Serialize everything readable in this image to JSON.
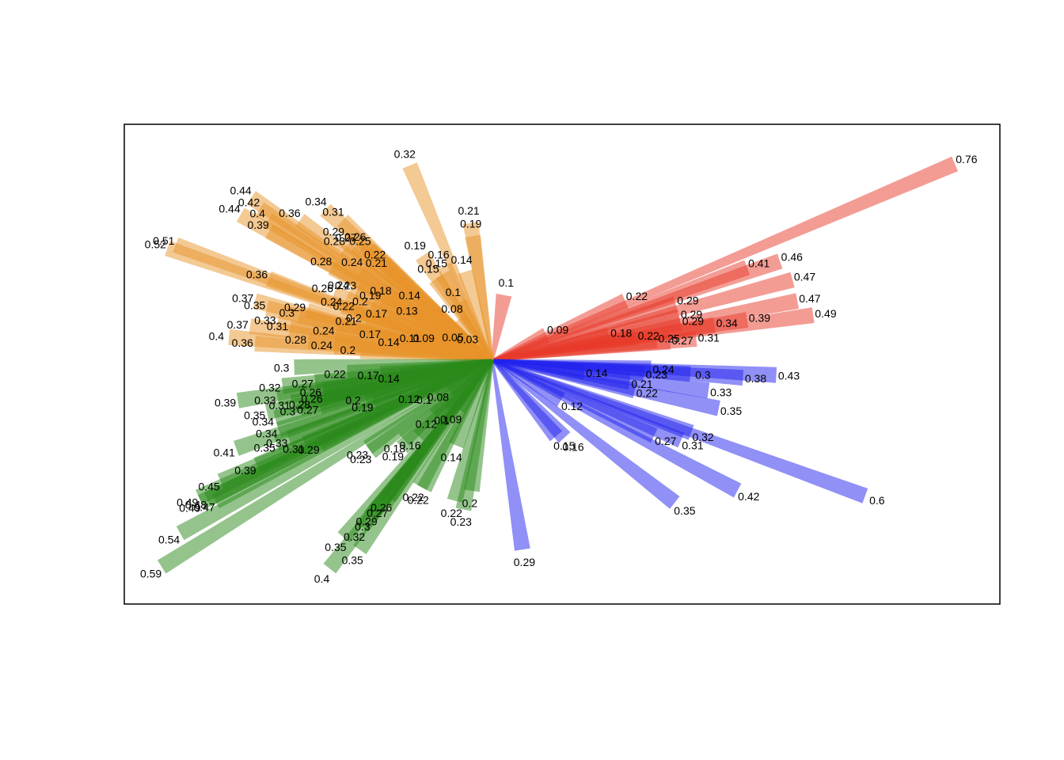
{
  "chart_data": {
    "type": "radial-bar",
    "title": "",
    "xlabel": "",
    "ylabel": "",
    "legend": "none",
    "grid": false,
    "units": "length in data units, angle in degrees (0 = east, counter-clockwise)",
    "series": [
      {
        "name": "red",
        "color": "#E8392A",
        "bars": [
          {
            "angle": 23,
            "value": 0.76
          },
          {
            "angle": 24,
            "value": 0.22
          },
          {
            "angle": 17,
            "value": 0.29
          },
          {
            "angle": 20,
            "value": 0.41
          },
          {
            "angle": 19,
            "value": 0.46
          },
          {
            "angle": 15,
            "value": 0.47
          },
          {
            "angle": 11,
            "value": 0.47
          },
          {
            "angle": 8,
            "value": 0.49
          },
          {
            "angle": 9,
            "value": 0.39
          },
          {
            "angle": 9,
            "value": 0.34
          },
          {
            "angle": 11,
            "value": 0.29
          },
          {
            "angle": 13,
            "value": 0.29
          },
          {
            "angle": 6,
            "value": 0.31
          },
          {
            "angle": 6,
            "value": 0.27
          },
          {
            "angle": 7,
            "value": 0.25
          },
          {
            "angle": 9,
            "value": 0.22
          },
          {
            "angle": 12,
            "value": 0.18
          },
          {
            "angle": 80,
            "value": 0.1
          },
          {
            "angle": 25,
            "value": 0.09
          }
        ]
      },
      {
        "name": "blue",
        "color": "#2222EE",
        "bars": [
          {
            "angle": -20,
            "value": 0.6
          },
          {
            "angle": -28,
            "value": 0.42
          },
          {
            "angle": -38,
            "value": 0.35
          },
          {
            "angle": -81,
            "value": 0.29
          },
          {
            "angle": -3,
            "value": 0.43
          },
          {
            "angle": -12,
            "value": 0.35
          },
          {
            "angle": -23,
            "value": 0.31
          },
          {
            "angle": -4,
            "value": 0.38
          },
          {
            "angle": -20,
            "value": 0.32
          },
          {
            "angle": -25,
            "value": 0.27
          },
          {
            "angle": -8,
            "value": 0.33
          },
          {
            "angle": -4,
            "value": 0.3
          },
          {
            "angle": -47,
            "value": 0.16
          },
          {
            "angle": -50,
            "value": 0.15
          },
          {
            "angle": -3,
            "value": 0.24
          },
          {
            "angle": -12,
            "value": 0.22
          },
          {
            "angle": -5,
            "value": 0.23
          },
          {
            "angle": -9,
            "value": 0.21
          },
          {
            "angle": -30,
            "value": 0.12
          },
          {
            "angle": -7,
            "value": 0.14
          }
        ]
      },
      {
        "name": "orange",
        "color": "#E8932A",
        "bars": [
          {
            "angle": 161,
            "value": 0.52
          },
          {
            "angle": 160,
            "value": 0.51
          },
          {
            "angle": 146,
            "value": 0.44
          },
          {
            "angle": 147,
            "value": 0.42
          },
          {
            "angle": 150,
            "value": 0.44
          },
          {
            "angle": 148,
            "value": 0.4
          },
          {
            "angle": 150,
            "value": 0.39
          },
          {
            "angle": 144,
            "value": 0.36
          },
          {
            "angle": 138,
            "value": 0.34
          },
          {
            "angle": 137,
            "value": 0.31
          },
          {
            "angle": 113,
            "value": 0.32
          },
          {
            "angle": 160,
            "value": 0.36
          },
          {
            "angle": 166,
            "value": 0.37
          },
          {
            "angle": 167,
            "value": 0.35
          },
          {
            "angle": 175,
            "value": 0.4
          },
          {
            "angle": 172,
            "value": 0.37
          },
          {
            "angle": 176,
            "value": 0.36
          },
          {
            "angle": 167,
            "value": 0.3
          },
          {
            "angle": 165,
            "value": 0.29
          },
          {
            "angle": 170,
            "value": 0.33
          },
          {
            "angle": 171,
            "value": 0.31
          },
          {
            "angle": 174,
            "value": 0.28
          },
          {
            "angle": 141,
            "value": 0.29
          },
          {
            "angle": 140,
            "value": 0.27
          },
          {
            "angle": 143,
            "value": 0.28
          },
          {
            "angle": 138,
            "value": 0.26
          },
          {
            "angle": 138,
            "value": 0.25
          },
          {
            "angle": 145,
            "value": 0.24
          },
          {
            "angle": 138,
            "value": 0.22
          },
          {
            "angle": 140,
            "value": 0.21
          },
          {
            "angle": 99,
            "value": 0.21
          },
          {
            "angle": 99,
            "value": 0.19
          },
          {
            "angle": 124,
            "value": 0.19
          },
          {
            "angle": 117,
            "value": 0.16
          },
          {
            "angle": 107,
            "value": 0.14
          },
          {
            "angle": 120,
            "value": 0.15
          },
          {
            "angle": 125,
            "value": 0.15
          },
          {
            "angle": 150,
            "value": 0.28
          },
          {
            "angle": 154,
            "value": 0.24
          },
          {
            "angle": 153,
            "value": 0.23
          },
          {
            "angle": 157,
            "value": 0.26
          },
          {
            "angle": 160,
            "value": 0.24
          },
          {
            "angle": 156,
            "value": 0.2
          },
          {
            "angle": 152,
            "value": 0.19
          },
          {
            "angle": 148,
            "value": 0.18
          },
          {
            "angle": 142,
            "value": 0.14
          },
          {
            "angle": 160,
            "value": 0.22
          },
          {
            "angle": 165,
            "value": 0.21
          },
          {
            "angle": 158,
            "value": 0.17
          },
          {
            "angle": 150,
            "value": 0.13
          },
          {
            "angle": 120,
            "value": 0.1
          },
          {
            "angle": 128,
            "value": 0.08
          },
          {
            "angle": 163,
            "value": 0.2
          },
          {
            "angle": 170,
            "value": 0.24
          },
          {
            "angle": 175,
            "value": 0.24
          },
          {
            "angle": 176,
            "value": 0.2
          },
          {
            "angle": 168,
            "value": 0.17
          },
          {
            "angle": 170,
            "value": 0.14
          },
          {
            "angle": 165,
            "value": 0.11
          },
          {
            "angle": 162,
            "value": 0.09
          },
          {
            "angle": 150,
            "value": 0.05
          },
          {
            "angle": 140,
            "value": 0.03
          }
        ]
      },
      {
        "name": "green",
        "color": "#2A8A1A",
        "bars": [
          {
            "angle": 212,
            "value": 0.59
          },
          {
            "angle": 209,
            "value": 0.54
          },
          {
            "angle": 205,
            "value": 0.49
          },
          {
            "angle": 206,
            "value": 0.49
          },
          {
            "angle": 207,
            "value": 0.47
          },
          {
            "angle": 206,
            "value": 0.48
          },
          {
            "angle": 204,
            "value": 0.45
          },
          {
            "angle": 199,
            "value": 0.41
          },
          {
            "angle": 189,
            "value": 0.39
          },
          {
            "angle": 204,
            "value": 0.39
          },
          {
            "angle": 193,
            "value": 0.35
          },
          {
            "angle": 190,
            "value": 0.33
          },
          {
            "angle": 187,
            "value": 0.32
          },
          {
            "angle": 198,
            "value": 0.34
          },
          {
            "angle": 195,
            "value": 0.34
          },
          {
            "angle": 201,
            "value": 0.35
          },
          {
            "angle": 201,
            "value": 0.33
          },
          {
            "angle": 192,
            "value": 0.31
          },
          {
            "angle": 182,
            "value": 0.3
          },
          {
            "angle": 204,
            "value": 0.31
          },
          {
            "angle": 206,
            "value": 0.29
          },
          {
            "angle": 194,
            "value": 0.3
          },
          {
            "angle": 193,
            "value": 0.28
          },
          {
            "angle": 195,
            "value": 0.27
          },
          {
            "angle": 190,
            "value": 0.26
          },
          {
            "angle": 187,
            "value": 0.27
          },
          {
            "angle": 192,
            "value": 0.26
          },
          {
            "angle": 232,
            "value": 0.4
          },
          {
            "angle": 235,
            "value": 0.35
          },
          {
            "angle": 230,
            "value": 0.35
          },
          {
            "angle": 232,
            "value": 0.32
          },
          {
            "angle": 232,
            "value": 0.3
          },
          {
            "angle": 232,
            "value": 0.29
          },
          {
            "angle": 233,
            "value": 0.27
          },
          {
            "angle": 233,
            "value": 0.26
          },
          {
            "angle": 259,
            "value": 0.23
          },
          {
            "angle": 255,
            "value": 0.22
          },
          {
            "angle": 261,
            "value": 0.2
          },
          {
            "angle": 240,
            "value": 0.22
          },
          {
            "angle": 242,
            "value": 0.22
          },
          {
            "angle": 247,
            "value": 0.14
          },
          {
            "angle": 215,
            "value": 0.23
          },
          {
            "angle": 217,
            "value": 0.23
          },
          {
            "angle": 224,
            "value": 0.19
          },
          {
            "angle": 222,
            "value": 0.18
          },
          {
            "angle": 226,
            "value": 0.16
          },
          {
            "angle": 224,
            "value": 0.12
          },
          {
            "angle": 235,
            "value": 0.09
          },
          {
            "angle": 230,
            "value": 0.1
          },
          {
            "angle": 185,
            "value": 0.22
          },
          {
            "angle": 187,
            "value": 0.17
          },
          {
            "angle": 190,
            "value": 0.14
          },
          {
            "angle": 196,
            "value": 0.2
          },
          {
            "angle": 200,
            "value": 0.19
          },
          {
            "angle": 205,
            "value": 0.12
          },
          {
            "angle": 210,
            "value": 0.1
          },
          {
            "angle": 214,
            "value": 0.08
          }
        ]
      }
    ]
  }
}
